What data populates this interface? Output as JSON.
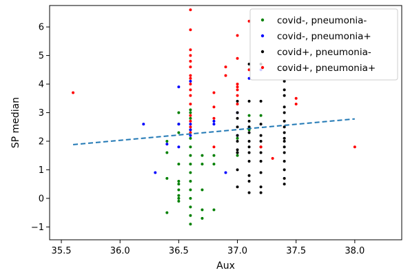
{
  "chart_data": {
    "type": "scatter",
    "title": "",
    "xlabel": "Aux",
    "ylabel": "SP median",
    "xlim": [
      35.4,
      38.4
    ],
    "ylim": [
      -1.45,
      6.75
    ],
    "xticks": [
      "35.5",
      "36.0",
      "36.5",
      "37.0",
      "37.5",
      "38.0"
    ],
    "yticks": [
      "−1",
      "0",
      "1",
      "2",
      "3",
      "4",
      "5",
      "6"
    ],
    "xtick_values": [
      35.5,
      36.0,
      36.5,
      37.0,
      37.5,
      38.0
    ],
    "ytick_values": [
      -1,
      0,
      1,
      2,
      3,
      4,
      5,
      6
    ],
    "grid": false,
    "legend_position": "top-right",
    "series": [
      {
        "name": "covid-, pneumonia-",
        "color": "#008000",
        "points": [
          [
            36.4,
            -0.5
          ],
          [
            36.4,
            0.7
          ],
          [
            36.4,
            1.6
          ],
          [
            36.4,
            2.0
          ],
          [
            36.5,
            -0.1
          ],
          [
            36.5,
            0.0
          ],
          [
            36.5,
            0.1
          ],
          [
            36.5,
            0.3
          ],
          [
            36.5,
            0.5
          ],
          [
            36.5,
            0.6
          ],
          [
            36.5,
            1.2
          ],
          [
            36.5,
            2.3
          ],
          [
            36.5,
            2.6
          ],
          [
            36.5,
            3.0
          ],
          [
            36.6,
            -0.9
          ],
          [
            36.6,
            -0.6
          ],
          [
            36.6,
            -0.3
          ],
          [
            36.6,
            0.0
          ],
          [
            36.6,
            0.3
          ],
          [
            36.6,
            0.6
          ],
          [
            36.6,
            0.9
          ],
          [
            36.6,
            1.2
          ],
          [
            36.6,
            1.5
          ],
          [
            36.6,
            1.8
          ],
          [
            36.6,
            2.1
          ],
          [
            36.6,
            2.4
          ],
          [
            36.6,
            2.8
          ],
          [
            36.6,
            3.0
          ],
          [
            36.6,
            3.1
          ],
          [
            36.7,
            -0.7
          ],
          [
            36.7,
            -0.4
          ],
          [
            36.7,
            0.3
          ],
          [
            36.7,
            1.2
          ],
          [
            36.7,
            1.5
          ],
          [
            36.8,
            -0.4
          ],
          [
            36.8,
            1.2
          ],
          [
            36.8,
            1.5
          ],
          [
            37.0,
            1.5
          ],
          [
            37.0,
            1.6
          ],
          [
            37.0,
            2.1
          ],
          [
            37.1,
            2.4
          ],
          [
            37.1,
            2.9
          ],
          [
            37.2,
            2.9
          ]
        ]
      },
      {
        "name": "covid-, pneumonia+",
        "color": "#0000ff",
        "points": [
          [
            36.2,
            2.6
          ],
          [
            36.3,
            0.9
          ],
          [
            36.4,
            1.9
          ],
          [
            36.5,
            1.8
          ],
          [
            36.5,
            2.6
          ],
          [
            36.5,
            3.9
          ],
          [
            36.6,
            2.2
          ],
          [
            36.6,
            2.4
          ],
          [
            36.6,
            2.6
          ],
          [
            36.6,
            4.1
          ],
          [
            36.8,
            2.6
          ],
          [
            36.8,
            2.7
          ],
          [
            36.9,
            0.9
          ],
          [
            37.0,
            2.2
          ],
          [
            37.0,
            3.0
          ],
          [
            37.1,
            4.2
          ],
          [
            37.2,
            4.5
          ]
        ]
      },
      {
        "name": "covid+, pneumonia-",
        "color": "#000000",
        "points": [
          [
            37.0,
            0.4
          ],
          [
            37.0,
            1.0
          ],
          [
            37.0,
            1.6
          ],
          [
            37.0,
            1.7
          ],
          [
            37.0,
            2.0
          ],
          [
            37.0,
            2.2
          ],
          [
            37.0,
            2.5
          ],
          [
            37.0,
            2.8
          ],
          [
            37.0,
            3.0
          ],
          [
            37.0,
            3.4
          ],
          [
            37.1,
            0.2
          ],
          [
            37.1,
            0.6
          ],
          [
            37.1,
            0.8
          ],
          [
            37.1,
            1.3
          ],
          [
            37.1,
            1.6
          ],
          [
            37.1,
            1.8
          ],
          [
            37.1,
            2.0
          ],
          [
            37.1,
            2.3
          ],
          [
            37.1,
            2.5
          ],
          [
            37.1,
            2.7
          ],
          [
            37.1,
            3.4
          ],
          [
            37.1,
            4.7
          ],
          [
            37.2,
            0.2
          ],
          [
            37.2,
            0.4
          ],
          [
            37.2,
            0.9
          ],
          [
            37.2,
            1.3
          ],
          [
            37.2,
            1.6
          ],
          [
            37.2,
            1.8
          ],
          [
            37.2,
            2.0
          ],
          [
            37.2,
            2.2
          ],
          [
            37.2,
            2.6
          ],
          [
            37.2,
            3.4
          ],
          [
            37.2,
            4.7
          ],
          [
            37.4,
            0.5
          ],
          [
            37.4,
            0.7
          ],
          [
            37.4,
            1.0
          ],
          [
            37.4,
            1.3
          ],
          [
            37.4,
            1.6
          ],
          [
            37.4,
            1.8
          ],
          [
            37.4,
            2.0
          ],
          [
            37.4,
            2.1
          ],
          [
            37.4,
            2.3
          ],
          [
            37.4,
            2.5
          ],
          [
            37.4,
            2.7
          ],
          [
            37.4,
            3.0
          ],
          [
            37.4,
            3.2
          ],
          [
            37.4,
            3.6
          ],
          [
            37.4,
            3.8
          ],
          [
            37.4,
            4.1
          ],
          [
            37.4,
            4.5
          ]
        ]
      },
      {
        "name": "covid+, pneumonia+",
        "color": "#ff0000",
        "points": [
          [
            35.6,
            3.7
          ],
          [
            36.6,
            2.3
          ],
          [
            36.6,
            2.5
          ],
          [
            36.6,
            2.7
          ],
          [
            36.6,
            2.9
          ],
          [
            36.6,
            3.3
          ],
          [
            36.6,
            3.6
          ],
          [
            36.6,
            3.8
          ],
          [
            36.6,
            4.0
          ],
          [
            36.6,
            4.2
          ],
          [
            36.6,
            4.3
          ],
          [
            36.6,
            4.6
          ],
          [
            36.6,
            4.8
          ],
          [
            36.6,
            5.0
          ],
          [
            36.6,
            5.2
          ],
          [
            36.6,
            5.9
          ],
          [
            36.6,
            6.6
          ],
          [
            36.8,
            1.8
          ],
          [
            36.8,
            2.8
          ],
          [
            36.8,
            3.2
          ],
          [
            36.8,
            3.7
          ],
          [
            36.9,
            4.3
          ],
          [
            36.9,
            4.6
          ],
          [
            37.0,
            3.3
          ],
          [
            37.0,
            3.6
          ],
          [
            37.0,
            3.8
          ],
          [
            37.0,
            3.9
          ],
          [
            37.0,
            4.0
          ],
          [
            37.0,
            4.9
          ],
          [
            37.0,
            5.7
          ],
          [
            37.1,
            4.5
          ],
          [
            37.1,
            6.2
          ],
          [
            37.2,
            1.8
          ],
          [
            37.3,
            1.4
          ],
          [
            37.5,
            3.3
          ],
          [
            37.5,
            3.5
          ],
          [
            38.0,
            1.8
          ]
        ]
      }
    ],
    "trend_line": {
      "style": "dashed",
      "color": "#1f77b4",
      "x": [
        35.6,
        38.0
      ],
      "y": [
        1.88,
        2.78
      ]
    }
  }
}
